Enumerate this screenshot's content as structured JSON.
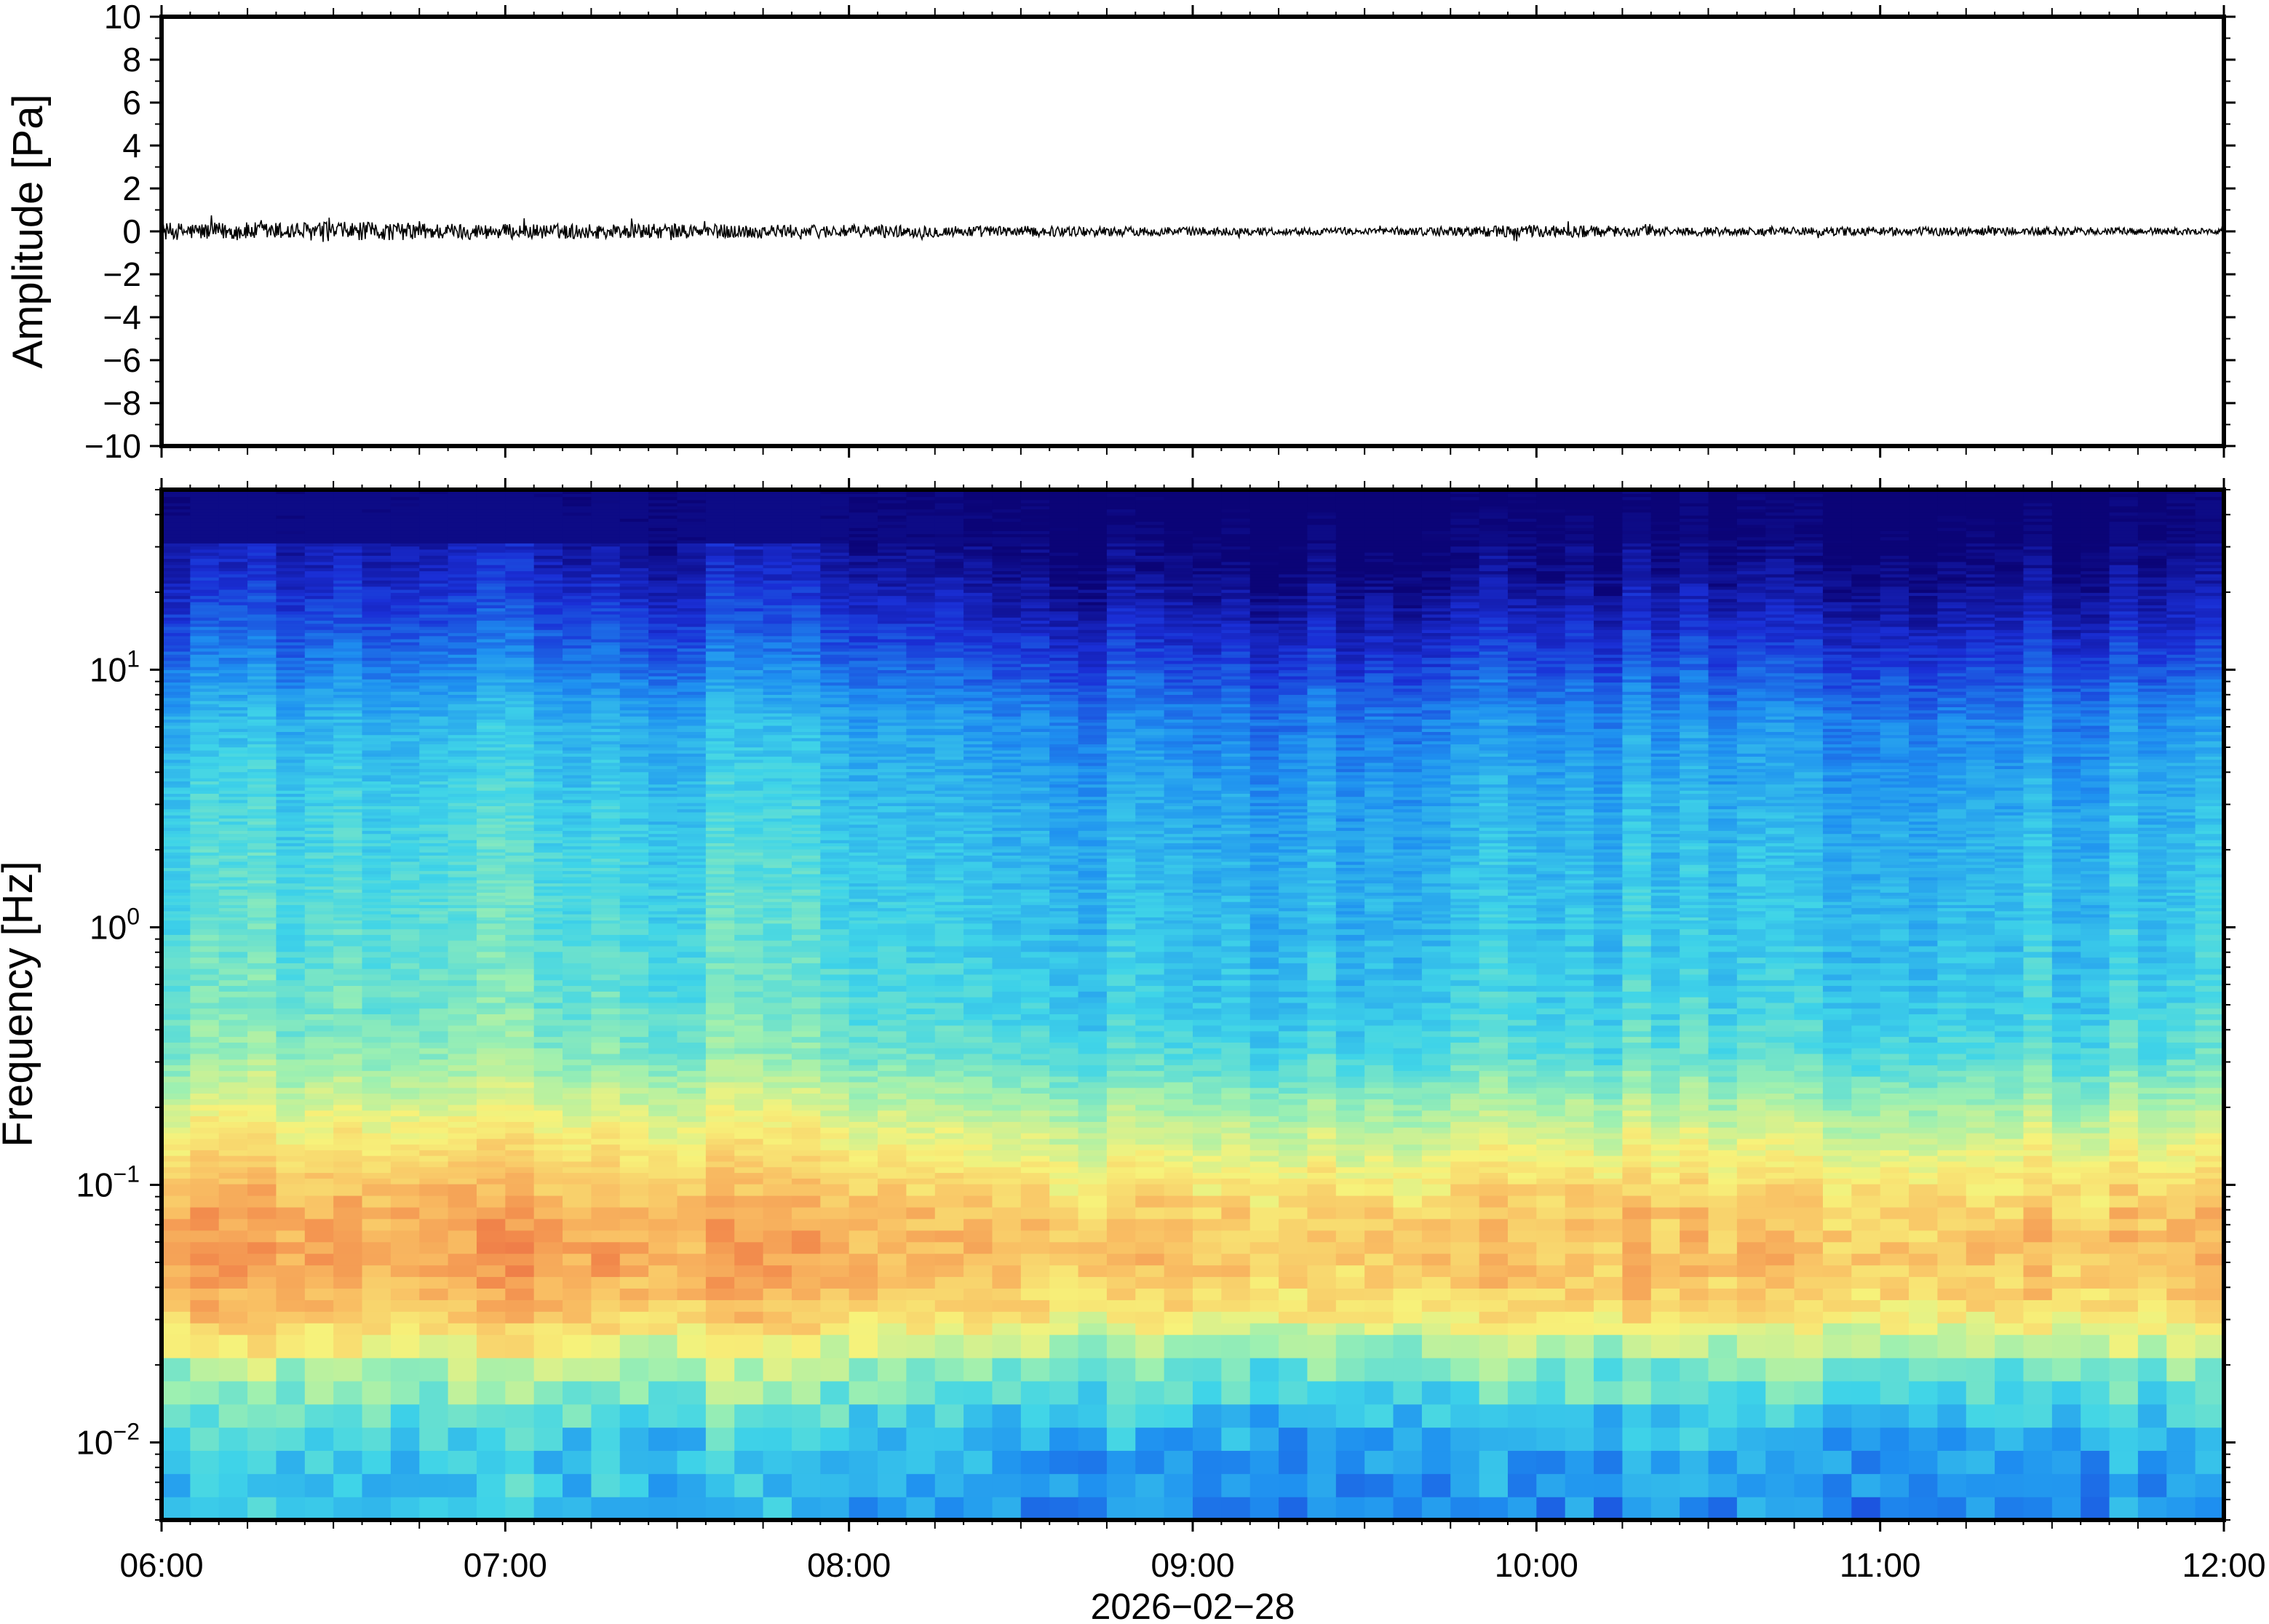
{
  "chart_data": [
    {
      "type": "line",
      "panel": "waveform",
      "ylabel": "Amplitude [Pa]",
      "ylim": [
        -10,
        10
      ],
      "yticks": [
        10,
        8,
        6,
        4,
        2,
        0,
        -2,
        -4,
        -6,
        -8,
        -10
      ],
      "ytick_labels": [
        "10",
        "8",
        "6",
        "4",
        "2",
        "0",
        "−2",
        "−4",
        "−6",
        "−8",
        "−10"
      ],
      "xlim": [
        "06:00",
        "12:00"
      ],
      "series": [
        {
          "color": "#000000",
          "mean": 0,
          "envelope_hours": [
            6.0,
            6.5,
            7.0,
            7.5,
            8.0,
            8.5,
            9.0,
            9.5,
            10.0,
            10.5,
            11.0,
            11.5,
            12.0
          ],
          "envelope_amplitude": [
            0.4,
            0.45,
            0.35,
            0.35,
            0.3,
            0.25,
            0.2,
            0.15,
            0.3,
            0.2,
            0.2,
            0.2,
            0.15
          ]
        }
      ]
    },
    {
      "type": "heatmap",
      "panel": "spectrogram",
      "ylabel": "Frequency [Hz]",
      "yscale": "log",
      "ylim": [
        0.005,
        50
      ],
      "yticks": [
        0.01,
        0.1,
        1,
        10
      ],
      "ytick_labels": [
        {
          "base": "10",
          "exp": "−2"
        },
        {
          "base": "10",
          "exp": "−1"
        },
        {
          "base": "10",
          "exp": "0"
        },
        {
          "base": "10",
          "exp": "1"
        }
      ],
      "xlabel": "2026−02−28",
      "xlim": [
        "06:00",
        "12:00"
      ],
      "xticks": [
        "06:00",
        "07:00",
        "08:00",
        "09:00",
        "10:00",
        "11:00",
        "12:00"
      ],
      "colormap": "jet",
      "colormap_stops": [
        "#0b0477",
        "#1a2fd6",
        "#1e8ff0",
        "#3fd4e8",
        "#9ef0b0",
        "#f7f27a",
        "#f9c064",
        "#f28a4c",
        "#e04a3a"
      ],
      "profile_log10_freq": [
        -2.3,
        -2.0,
        -1.7,
        -1.5,
        -1.3,
        -1.1,
        -0.9,
        -0.7,
        -0.5,
        -0.3,
        -0.1,
        0.2,
        0.5,
        0.8,
        1.0,
        1.2,
        1.4,
        1.7
      ],
      "profile_level": [
        0.28,
        0.33,
        0.5,
        0.7,
        0.78,
        0.75,
        0.65,
        0.55,
        0.44,
        0.4,
        0.38,
        0.36,
        0.33,
        0.28,
        0.2,
        0.12,
        0.05,
        0.0
      ],
      "time_variation_hours": [
        6.0,
        6.5,
        7.0,
        7.5,
        8.0,
        8.5,
        9.0,
        9.5,
        10.0,
        10.5,
        11.0,
        11.5,
        12.0
      ],
      "time_variation_offset": [
        0.05,
        0.05,
        0.04,
        0.03,
        0.02,
        -0.02,
        -0.04,
        -0.05,
        -0.02,
        -0.03,
        -0.03,
        -0.02,
        -0.01
      ]
    }
  ]
}
